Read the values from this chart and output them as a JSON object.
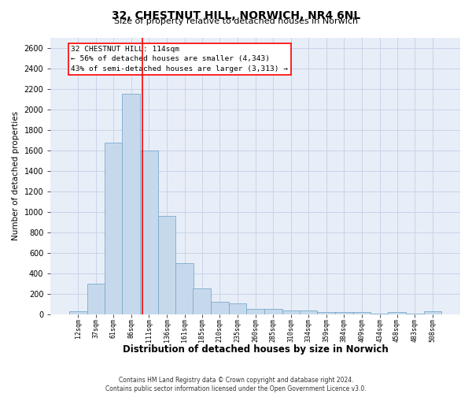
{
  "title_line1": "32, CHESTNUT HILL, NORWICH, NR4 6NL",
  "title_line2": "Size of property relative to detached houses in Norwich",
  "xlabel": "Distribution of detached houses by size in Norwich",
  "ylabel": "Number of detached properties",
  "footer_line1": "Contains HM Land Registry data © Crown copyright and database right 2024.",
  "footer_line2": "Contains public sector information licensed under the Open Government Licence v3.0.",
  "annotation_line1": "32 CHESTNUT HILL: 114sqm",
  "annotation_line2": "← 56% of detached houses are smaller (4,343)",
  "annotation_line3": "43% of semi-detached houses are larger (3,313) →",
  "categories": [
    "12sqm",
    "37sqm",
    "61sqm",
    "86sqm",
    "111sqm",
    "136sqm",
    "161sqm",
    "185sqm",
    "210sqm",
    "235sqm",
    "260sqm",
    "285sqm",
    "310sqm",
    "334sqm",
    "359sqm",
    "384sqm",
    "409sqm",
    "434sqm",
    "458sqm",
    "483sqm",
    "508sqm"
  ],
  "bin_starts": [
    12,
    37,
    61,
    86,
    111,
    136,
    161,
    185,
    210,
    235,
    260,
    285,
    310,
    334,
    359,
    384,
    409,
    434,
    458,
    483,
    508
  ],
  "bin_width": 25,
  "values": [
    25,
    300,
    1670,
    2150,
    1600,
    960,
    500,
    250,
    120,
    105,
    50,
    50,
    35,
    35,
    20,
    20,
    20,
    5,
    20,
    5,
    25
  ],
  "bar_color": "#c6d9ec",
  "bar_edge_color": "#7aaacb",
  "red_line_x": 114,
  "ylim": [
    0,
    2700
  ],
  "yticks": [
    0,
    200,
    400,
    600,
    800,
    1000,
    1200,
    1400,
    1600,
    1800,
    2000,
    2200,
    2400,
    2600
  ],
  "grid_color": "#c8d4e8",
  "bg_color": "#e8eef8"
}
